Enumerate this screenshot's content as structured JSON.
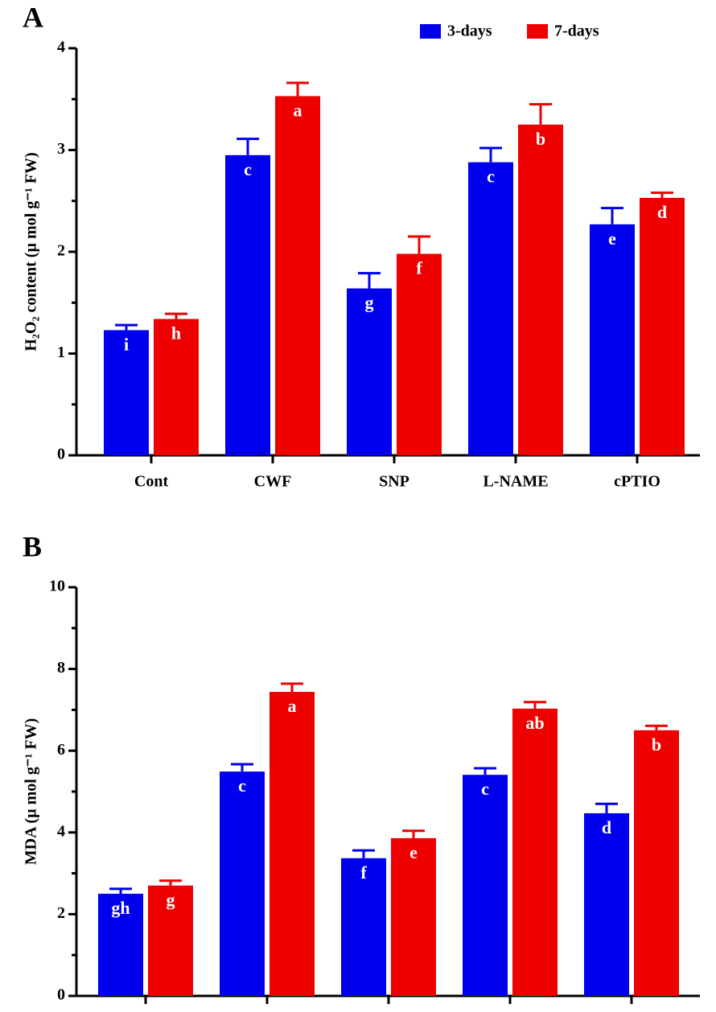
{
  "chart_data": [
    {
      "type": "bar",
      "panel_label": "A",
      "ylabel": "H₂O₂ content (µ mol g⁻¹ FW)",
      "categories": [
        "Cont",
        "CWF",
        "SNP",
        "L-NAME",
        "cPTIO"
      ],
      "ylim": [
        0,
        4
      ],
      "yticks": [
        0,
        1,
        2,
        3,
        4
      ],
      "minor_yticks": [
        0.5,
        1.5,
        2.5,
        3.5
      ],
      "legend": true,
      "series": [
        {
          "name": "3-days",
          "color": "#0000ee",
          "values": [
            1.23,
            2.95,
            1.64,
            2.88,
            2.27
          ],
          "errors": [
            0.05,
            0.16,
            0.15,
            0.14,
            0.16
          ],
          "letters": [
            "i",
            "c",
            "g",
            "c",
            "e"
          ]
        },
        {
          "name": "7-days",
          "color": "#ee0000",
          "values": [
            1.34,
            3.53,
            1.98,
            3.25,
            2.53
          ],
          "errors": [
            0.05,
            0.13,
            0.17,
            0.2,
            0.05
          ],
          "letters": [
            "h",
            "a",
            "f",
            "b",
            "d"
          ]
        }
      ]
    },
    {
      "type": "bar",
      "panel_label": "B",
      "ylabel": "MDA (µ mol g⁻¹ FW)",
      "categories": [
        null,
        null,
        null,
        null,
        null
      ],
      "ylim": [
        0,
        10
      ],
      "yticks": [
        0,
        2,
        4,
        6,
        8,
        10
      ],
      "minor_yticks": [
        1,
        3,
        5,
        7,
        9
      ],
      "legend": false,
      "series": [
        {
          "color": "#0000ee",
          "values": [
            2.5,
            5.49,
            3.37,
            5.41,
            4.47
          ],
          "errors": [
            0.12,
            0.18,
            0.19,
            0.16,
            0.23
          ],
          "letters": [
            "gh",
            "c",
            "f",
            "c",
            "d"
          ]
        },
        {
          "color": "#ee0000",
          "values": [
            2.7,
            7.44,
            3.86,
            7.03,
            6.5
          ],
          "errors": [
            0.12,
            0.2,
            0.18,
            0.16,
            0.11
          ],
          "letters": [
            "g",
            "a",
            "e",
            "ab",
            "b"
          ]
        }
      ]
    }
  ]
}
